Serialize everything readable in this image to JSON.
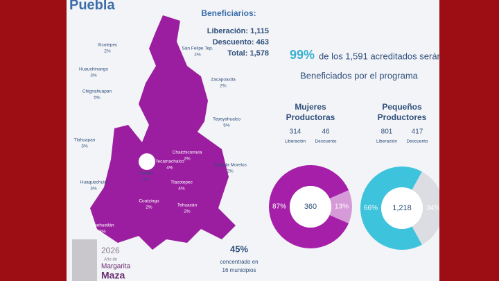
{
  "title": "Puebla",
  "beneficiaries": {
    "heading": "Beneficiarios:",
    "lines": [
      "Liberación: 1,115",
      "Descuento: 463",
      "Total: 1,578"
    ]
  },
  "headline": {
    "percent": "99%",
    "text_1": "de los 1,591 acreditados serán",
    "text_2": "Beneficiados por el programa"
  },
  "municipalities": [
    {
      "name": "Xicotepec",
      "pct": "2%"
    },
    {
      "name": "Huauchinango",
      "pct": "3%"
    },
    {
      "name": "Chignahuapan",
      "pct": "5%"
    },
    {
      "name": "Tlahuapan",
      "pct": "3%"
    },
    {
      "name": "Huaquechula",
      "pct": "3%"
    },
    {
      "name": "Huehuetlán",
      "pct": "3%"
    },
    {
      "name": "Coatzingo",
      "pct": "2%"
    },
    {
      "name": "Tehuacán",
      "pct": "2%"
    },
    {
      "name": "Tlacotepec",
      "pct": "4%"
    },
    {
      "name": "Puebla",
      "pct": "3%"
    },
    {
      "name": "Tecamachalco",
      "pct": "4%"
    },
    {
      "name": "Chalchicomula",
      "pct": "2%"
    },
    {
      "name": "Cañada Morelos",
      "pct": "2%"
    },
    {
      "name": "Tepeyahualco",
      "pct": "5%"
    },
    {
      "name": "Zacapoaxtla",
      "pct": "2%"
    },
    {
      "name": "San Felipe Tep.",
      "pct": "2%"
    }
  ],
  "concentration": {
    "percent": "45%",
    "text_1": "concentrado en",
    "text_2": "16 municipios"
  },
  "logo": {
    "year": "2026",
    "line_1": "Año de",
    "line_2": "Margarita",
    "line_3": "Maza"
  },
  "donuts": [
    {
      "title_1": "Mujeres",
      "title_2": "Productoras",
      "stats": [
        {
          "value": "314",
          "label": "Liberación"
        },
        {
          "value": "46",
          "label": "Descuento"
        }
      ],
      "center": "360",
      "segments": [
        {
          "value": 87,
          "label": "87%",
          "color": "#a51fa8"
        },
        {
          "value": 13,
          "label": "13%",
          "color": "#d79ad8"
        }
      ]
    },
    {
      "title_1": "Pequeños",
      "title_2": "Productores",
      "stats": [
        {
          "value": "801",
          "label": "Liberación"
        },
        {
          "value": "417",
          "label": "Descuento"
        }
      ],
      "center": "1,218",
      "segments": [
        {
          "value": 66,
          "label": "66%",
          "color": "#3ec3dc"
        },
        {
          "value": 34,
          "label": "34%",
          "color": "#dcdde2"
        }
      ]
    }
  ]
}
